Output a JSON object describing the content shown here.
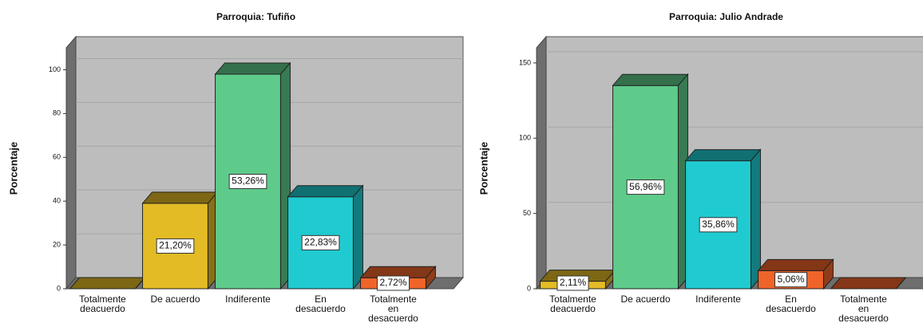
{
  "chart_data": [
    {
      "type": "bar",
      "title": "Parroquia: Tufiño",
      "y_label": "Porcentaje",
      "categories": [
        "Totalmente deacuerdo",
        "De acuerdo",
        "Indiferente",
        "En desacuerdo",
        "Totalmente en desacuerdo"
      ],
      "values": [
        0,
        39,
        98,
        42,
        5
      ],
      "colors": [
        "#e3bb25",
        "#e3bb25",
        "#5ecb8a",
        "#1fcbd0",
        "#f0642a"
      ],
      "bar_labels": [
        null,
        "21,20%",
        "53,26%",
        "22,83%",
        "2,72%"
      ],
      "ylim": [
        0,
        110
      ],
      "yticks": [
        0,
        20,
        40,
        60,
        80,
        100
      ],
      "grid": true
    },
    {
      "type": "bar",
      "title": "Parroquia: Julio Andrade",
      "y_label": "Porcentaje",
      "categories": [
        "Totalmente deacuerdo",
        "De acuerdo",
        "Indiferente",
        "En desacuerdo",
        "Totalmente en desacuerdo"
      ],
      "values": [
        5,
        135,
        85,
        12,
        0
      ],
      "colors": [
        "#e3bb25",
        "#5ecb8a",
        "#1fcbd0",
        "#f0642a",
        "#f0642a"
      ],
      "bar_labels": [
        "2,11%",
        "56,96%",
        "35,86%",
        "5,06%",
        null
      ],
      "ylim": [
        0,
        160
      ],
      "yticks": [
        0,
        50,
        100,
        150
      ],
      "grid": true
    }
  ]
}
